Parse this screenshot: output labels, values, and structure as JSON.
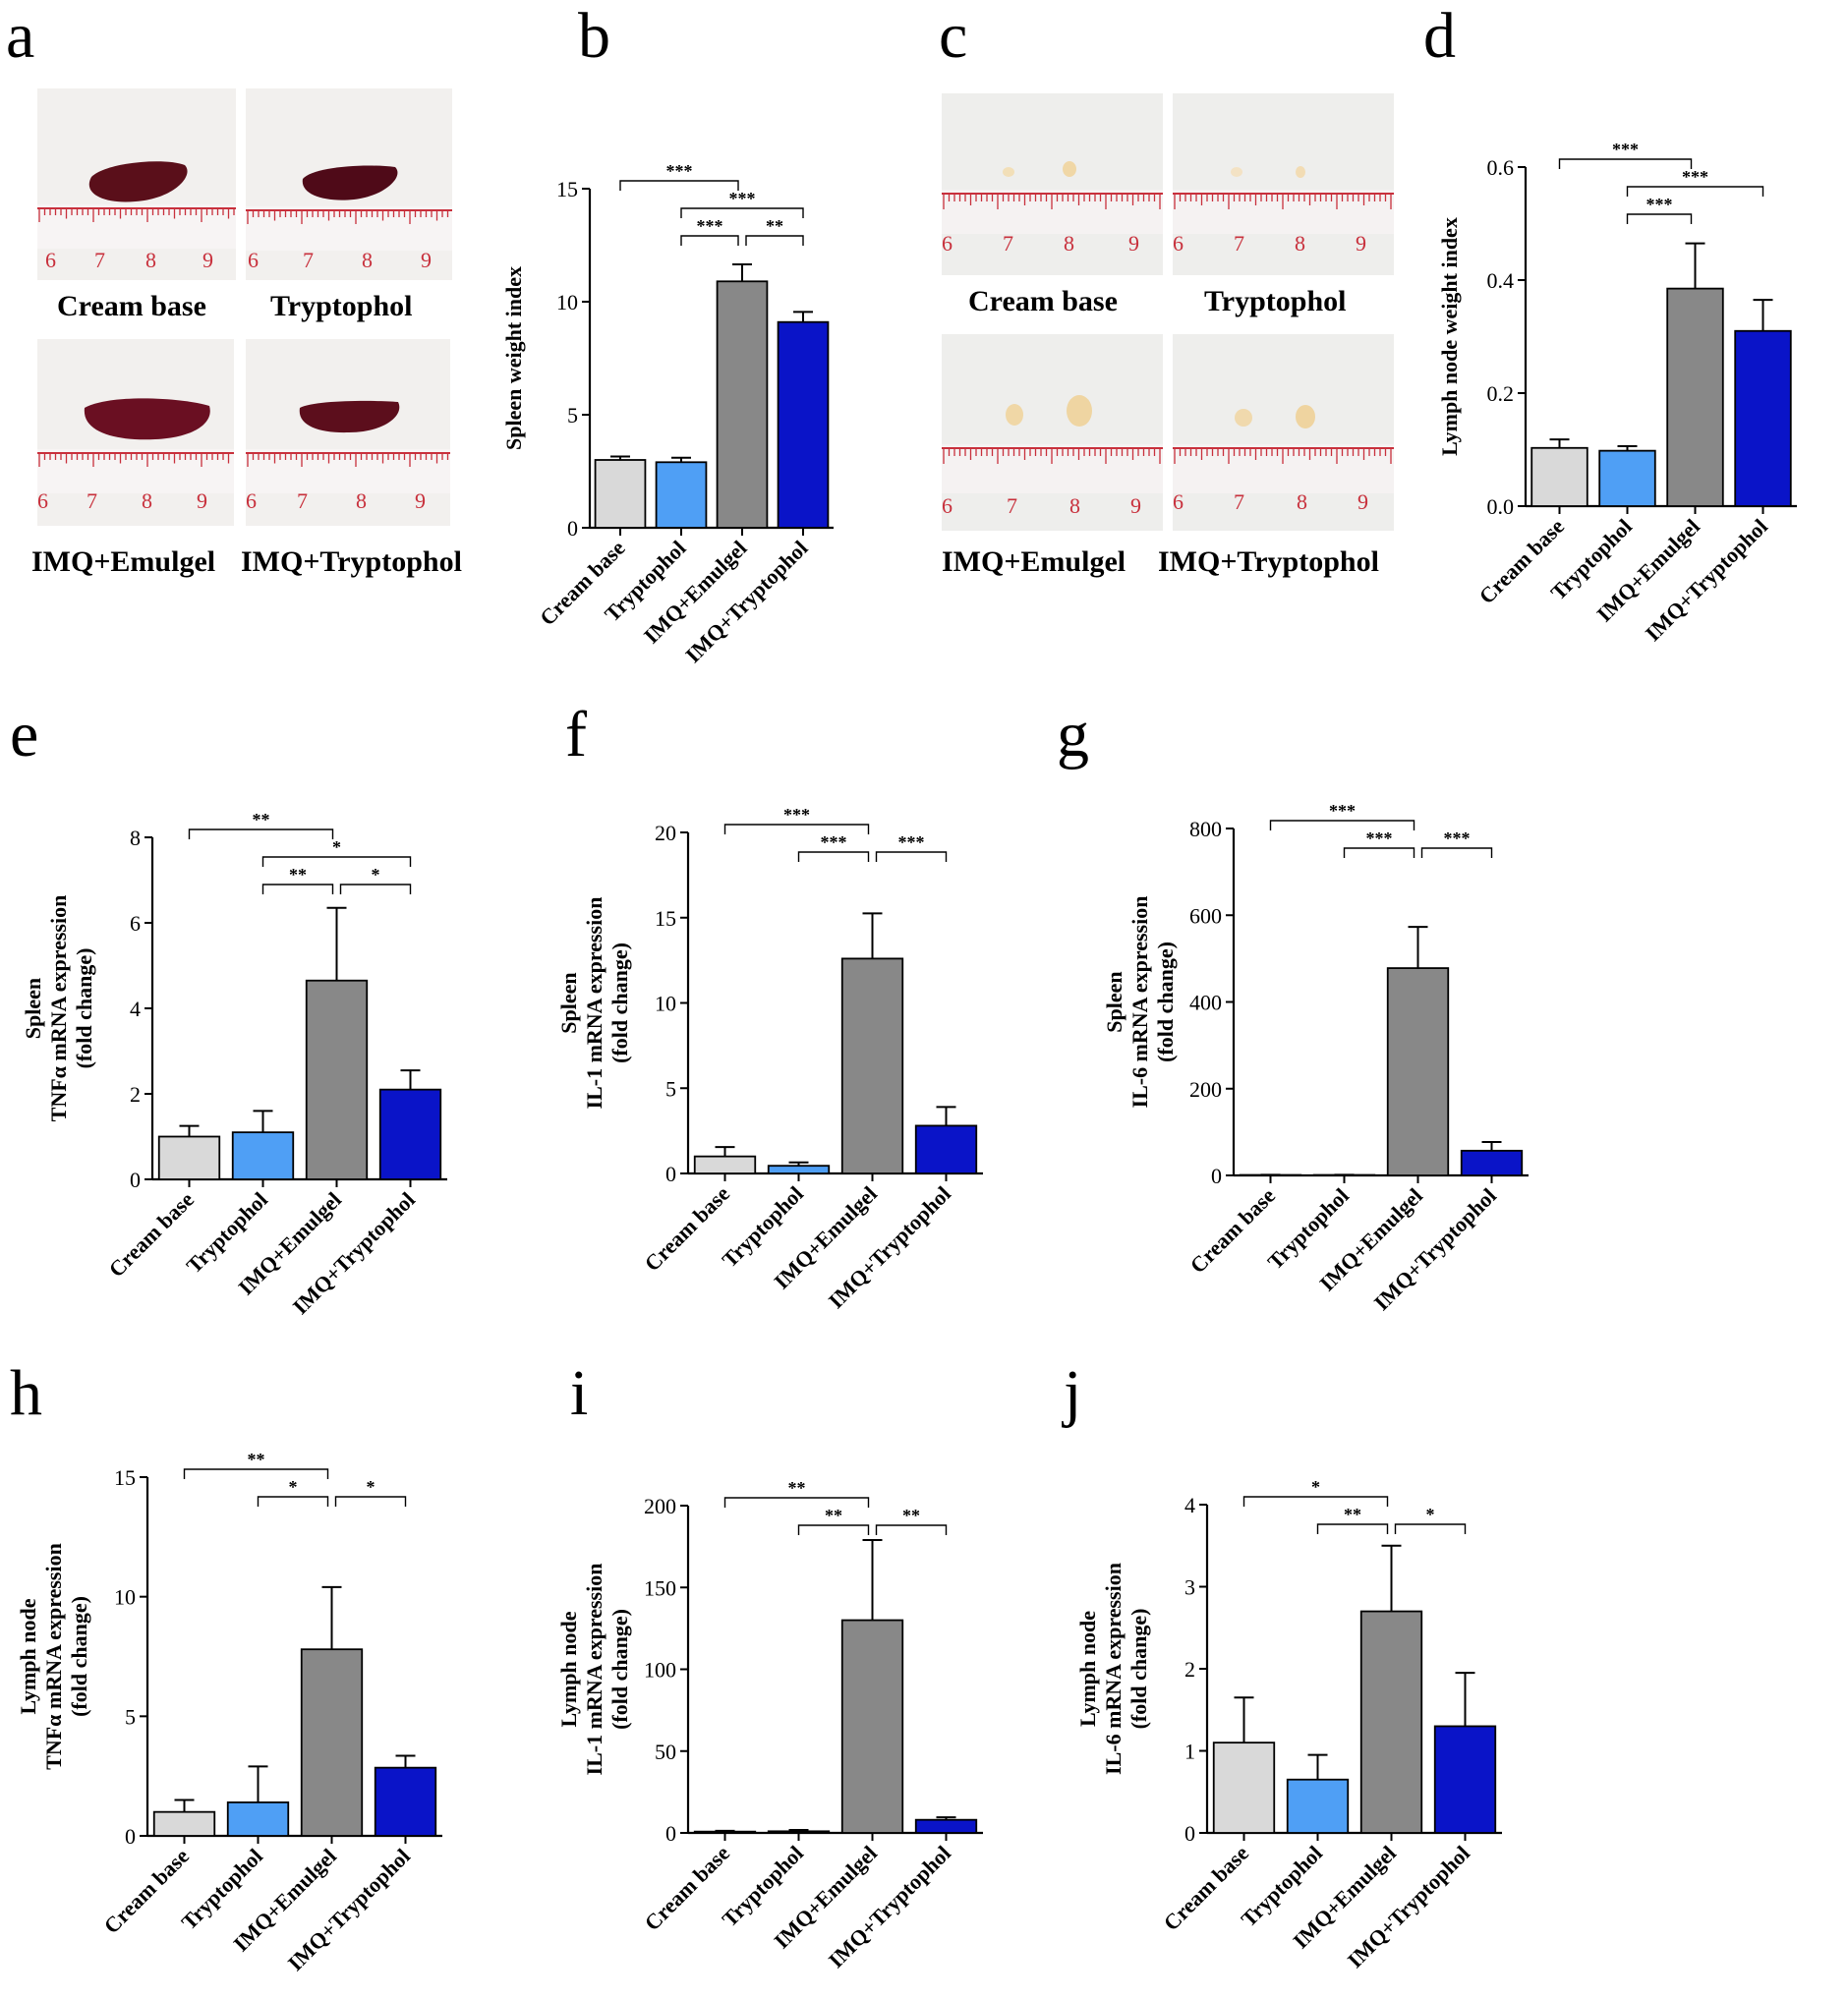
{
  "panels": {
    "a": {
      "letter": "a",
      "photo_labels": [
        "Cream base",
        "Tryptophol",
        "IMQ+Emulgel",
        "IMQ+Tryptophol"
      ]
    },
    "b": {
      "letter": "b"
    },
    "c": {
      "letter": "c",
      "photo_labels": [
        "Cream base",
        "Tryptophol",
        "IMQ+Emulgel",
        "IMQ+Tryptophol"
      ]
    },
    "d": {
      "letter": "d"
    },
    "e": {
      "letter": "e"
    },
    "f": {
      "letter": "f"
    },
    "g": {
      "letter": "g"
    },
    "h": {
      "letter": "h"
    },
    "i": {
      "letter": "i"
    },
    "j": {
      "letter": "j"
    }
  },
  "ruler": {
    "spleen_ticks": [
      "6",
      "7",
      "8",
      "9"
    ],
    "lymph_ticks": [
      "6",
      "7",
      "8",
      "9"
    ]
  },
  "colors": {
    "cream_base": "#d9d9d9",
    "tryptophol": "#4f9ff5",
    "imq_emulgel": "#888888",
    "imq_tryptophol": "#0a14c8",
    "spleen": "#5a0f1a",
    "lymph": "#f2dfb8",
    "ruler": "#c8303c"
  },
  "chart_data": [
    {
      "id": "b",
      "type": "bar",
      "categories": [
        "Cream base",
        "Tryptophol",
        "IMQ+Emulgel",
        "IMQ+Tryptophol"
      ],
      "values": [
        3.0,
        2.9,
        10.9,
        9.1
      ],
      "errors": [
        0.15,
        0.2,
        0.75,
        0.45
      ],
      "ylabel_lines": [
        "Spleen weight index"
      ],
      "ylim": [
        0,
        15
      ],
      "yticks": [
        "0",
        "5",
        "10",
        "15"
      ],
      "significance": [
        {
          "from": 0,
          "to": 2,
          "label": "***",
          "level": 0
        },
        {
          "from": 1,
          "to": 3,
          "label": "***",
          "level": 1
        },
        {
          "from": 1,
          "to": 2,
          "label": "***",
          "level": 2
        },
        {
          "from": 2,
          "to": 3,
          "label": "**",
          "level": 2
        }
      ]
    },
    {
      "id": "d",
      "type": "bar",
      "categories": [
        "Cream base",
        "Tryptophol",
        "IMQ+Emulgel",
        "IMQ+Tryptophol"
      ],
      "values": [
        0.103,
        0.098,
        0.385,
        0.31
      ],
      "errors": [
        0.015,
        0.008,
        0.08,
        0.055
      ],
      "ylabel_lines": [
        "Lymph node weight index"
      ],
      "ylim": [
        0,
        0.6
      ],
      "yticks": [
        "0.0",
        "0.2",
        "0.4",
        "0.6"
      ],
      "significance": [
        {
          "from": 0,
          "to": 2,
          "label": "***",
          "level": 0
        },
        {
          "from": 1,
          "to": 3,
          "label": "***",
          "level": 1
        },
        {
          "from": 1,
          "to": 2,
          "label": "***",
          "level": 2
        }
      ]
    },
    {
      "id": "e",
      "type": "bar",
      "categories": [
        "Cream base",
        "Tryptophol",
        "IMQ+Emulgel",
        "IMQ+Tryptophol"
      ],
      "values": [
        1.0,
        1.1,
        4.65,
        2.1
      ],
      "errors": [
        0.25,
        0.5,
        1.7,
        0.45
      ],
      "ylabel_lines": [
        "Spleen",
        "TNFα mRNA expression",
        "(fold change)"
      ],
      "ylim": [
        0,
        8
      ],
      "yticks": [
        "0",
        "2",
        "4",
        "6",
        "8"
      ],
      "significance": [
        {
          "from": 0,
          "to": 2,
          "label": "**",
          "level": 0
        },
        {
          "from": 1,
          "to": 3,
          "label": "*",
          "level": 1
        },
        {
          "from": 1,
          "to": 2,
          "label": "**",
          "level": 2
        },
        {
          "from": 2,
          "to": 3,
          "label": "*",
          "level": 2
        }
      ]
    },
    {
      "id": "f",
      "type": "bar",
      "categories": [
        "Cream base",
        "Tryptophol",
        "IMQ+Emulgel",
        "IMQ+Tryptophol"
      ],
      "values": [
        1.0,
        0.45,
        12.6,
        2.8
      ],
      "errors": [
        0.55,
        0.2,
        2.65,
        1.1
      ],
      "ylabel_lines": [
        "Spleen",
        "IL-1 mRNA expression",
        "(fold change)"
      ],
      "ylim": [
        0,
        20
      ],
      "yticks": [
        "0",
        "5",
        "10",
        "15",
        "20"
      ],
      "significance": [
        {
          "from": 0,
          "to": 2,
          "label": "***",
          "level": 0
        },
        {
          "from": 1,
          "to": 2,
          "label": "***",
          "level": 1
        },
        {
          "from": 2,
          "to": 3,
          "label": "***",
          "level": 1
        }
      ]
    },
    {
      "id": "g",
      "type": "bar",
      "categories": [
        "Cream base",
        "Tryptophol",
        "IMQ+Emulgel",
        "IMQ+Tryptophol"
      ],
      "values": [
        1,
        1,
        478,
        57
      ],
      "errors": [
        0.5,
        0.5,
        95,
        20
      ],
      "ylabel_lines": [
        "Spleen",
        "IL-6 mRNA expression",
        "(fold change)"
      ],
      "ylim": [
        0,
        800
      ],
      "yticks": [
        "0",
        "200",
        "400",
        "600",
        "800"
      ],
      "significance": [
        {
          "from": 0,
          "to": 2,
          "label": "***",
          "level": 0
        },
        {
          "from": 1,
          "to": 2,
          "label": "***",
          "level": 1
        },
        {
          "from": 2,
          "to": 3,
          "label": "***",
          "level": 1
        }
      ]
    },
    {
      "id": "h",
      "type": "bar",
      "categories": [
        "Cream base",
        "Tryptophol",
        "IMQ+Emulgel",
        "IMQ+Tryptophol"
      ],
      "values": [
        1.0,
        1.4,
        7.8,
        2.85
      ],
      "errors": [
        0.5,
        1.5,
        2.6,
        0.5
      ],
      "ylabel_lines": [
        "Lymph node",
        "TNFα mRNA expression",
        "(fold change)"
      ],
      "ylim": [
        0,
        15
      ],
      "yticks": [
        "0",
        "5",
        "10",
        "15"
      ],
      "significance": [
        {
          "from": 0,
          "to": 2,
          "label": "**",
          "level": 0
        },
        {
          "from": 1,
          "to": 2,
          "label": "*",
          "level": 1
        },
        {
          "from": 2,
          "to": 3,
          "label": "*",
          "level": 1
        }
      ]
    },
    {
      "id": "i",
      "type": "bar",
      "categories": [
        "Cream base",
        "Tryptophol",
        "IMQ+Emulgel",
        "IMQ+Tryptophol"
      ],
      "values": [
        0.8,
        1.0,
        130,
        8
      ],
      "errors": [
        0.5,
        0.8,
        49,
        1.5
      ],
      "ylabel_lines": [
        "Lymph node",
        "IL-1 mRNA expression",
        "(fold change)"
      ],
      "ylim": [
        0,
        200
      ],
      "yticks": [
        "0",
        "50",
        "100",
        "150",
        "200"
      ],
      "significance": [
        {
          "from": 0,
          "to": 2,
          "label": "**",
          "level": 0
        },
        {
          "from": 1,
          "to": 2,
          "label": "**",
          "level": 1
        },
        {
          "from": 2,
          "to": 3,
          "label": "**",
          "level": 1
        }
      ]
    },
    {
      "id": "j",
      "type": "bar",
      "categories": [
        "Cream base",
        "Tryptophol",
        "IMQ+Emulgel",
        "IMQ+Tryptophol"
      ],
      "values": [
        1.1,
        0.65,
        2.7,
        1.3
      ],
      "errors": [
        0.55,
        0.3,
        0.8,
        0.65
      ],
      "ylabel_lines": [
        "Lymph node",
        "IL-6 mRNA expression",
        "(fold change)"
      ],
      "ylim": [
        0,
        4
      ],
      "yticks": [
        "0",
        "1",
        "2",
        "3",
        "4"
      ],
      "significance": [
        {
          "from": 0,
          "to": 2,
          "label": "*",
          "level": 0
        },
        {
          "from": 1,
          "to": 2,
          "label": "**",
          "level": 1
        },
        {
          "from": 2,
          "to": 3,
          "label": "*",
          "level": 1
        }
      ]
    }
  ]
}
